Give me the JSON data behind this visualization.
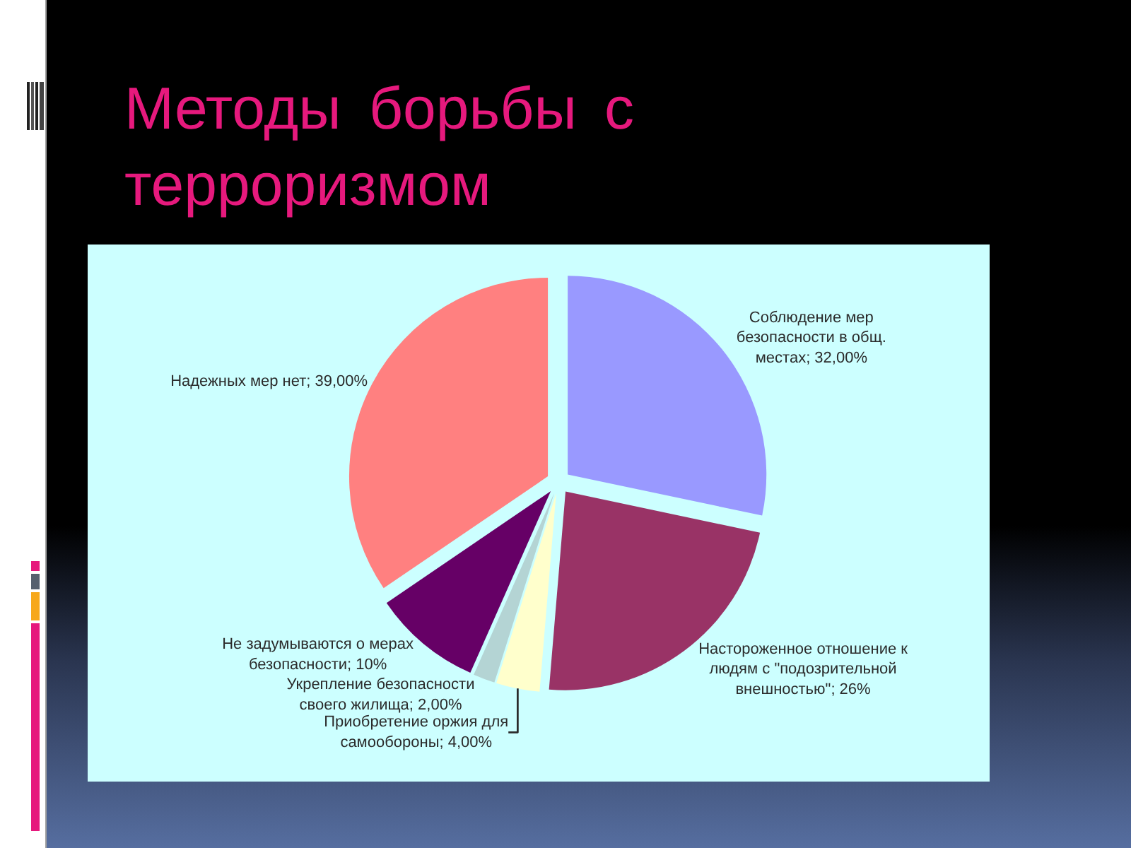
{
  "chart_data": {
    "type": "pie",
    "title": "Методы борьбы с терроризмом",
    "categories": [
      "Соблюдение мер безопасности в общ. местах",
      "Настороженное отношение к людям с \"подозрительной внешностью\"",
      "Приобретение оржия для самообороны",
      "Укрепление безопасности своего жилища",
      "Не задумываются о мерах безопасности",
      "Надежных мер нет"
    ],
    "values": [
      32,
      26,
      4,
      2,
      10,
      39
    ],
    "value_labels": [
      "32,00%",
      "26%",
      "4,00%",
      "2,00%",
      "10%",
      "39,00%"
    ],
    "colors": [
      "#9999ff",
      "#993366",
      "#ffffcc",
      "#b4d4d4",
      "#660066",
      "#ff8080"
    ],
    "legend": false
  }
}
